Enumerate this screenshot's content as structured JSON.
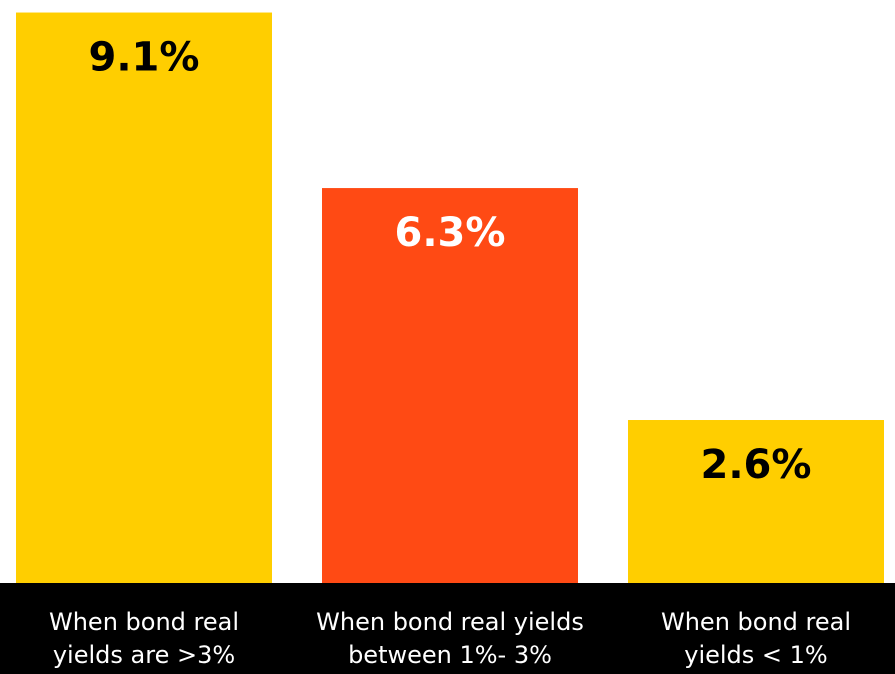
{
  "chart_data": {
    "type": "bar",
    "categories": [
      [
        "When bond real",
        "yields are >3%"
      ],
      [
        "When bond real yields",
        "between 1%- 3%"
      ],
      [
        "When bond real",
        "yields < 1%"
      ]
    ],
    "values": [
      9.1,
      6.3,
      2.6
    ],
    "value_labels": [
      "9.1%",
      "6.3%",
      "2.6%"
    ],
    "bar_colors": [
      "#FFCE00",
      "#FF4A14",
      "#FFCE00"
    ],
    "label_colors": [
      "#000000",
      "#ffffff",
      "#000000"
    ],
    "ylim": [
      0,
      9.3
    ],
    "grid": false,
    "legend": "none",
    "axis_band_color": "#000000"
  }
}
